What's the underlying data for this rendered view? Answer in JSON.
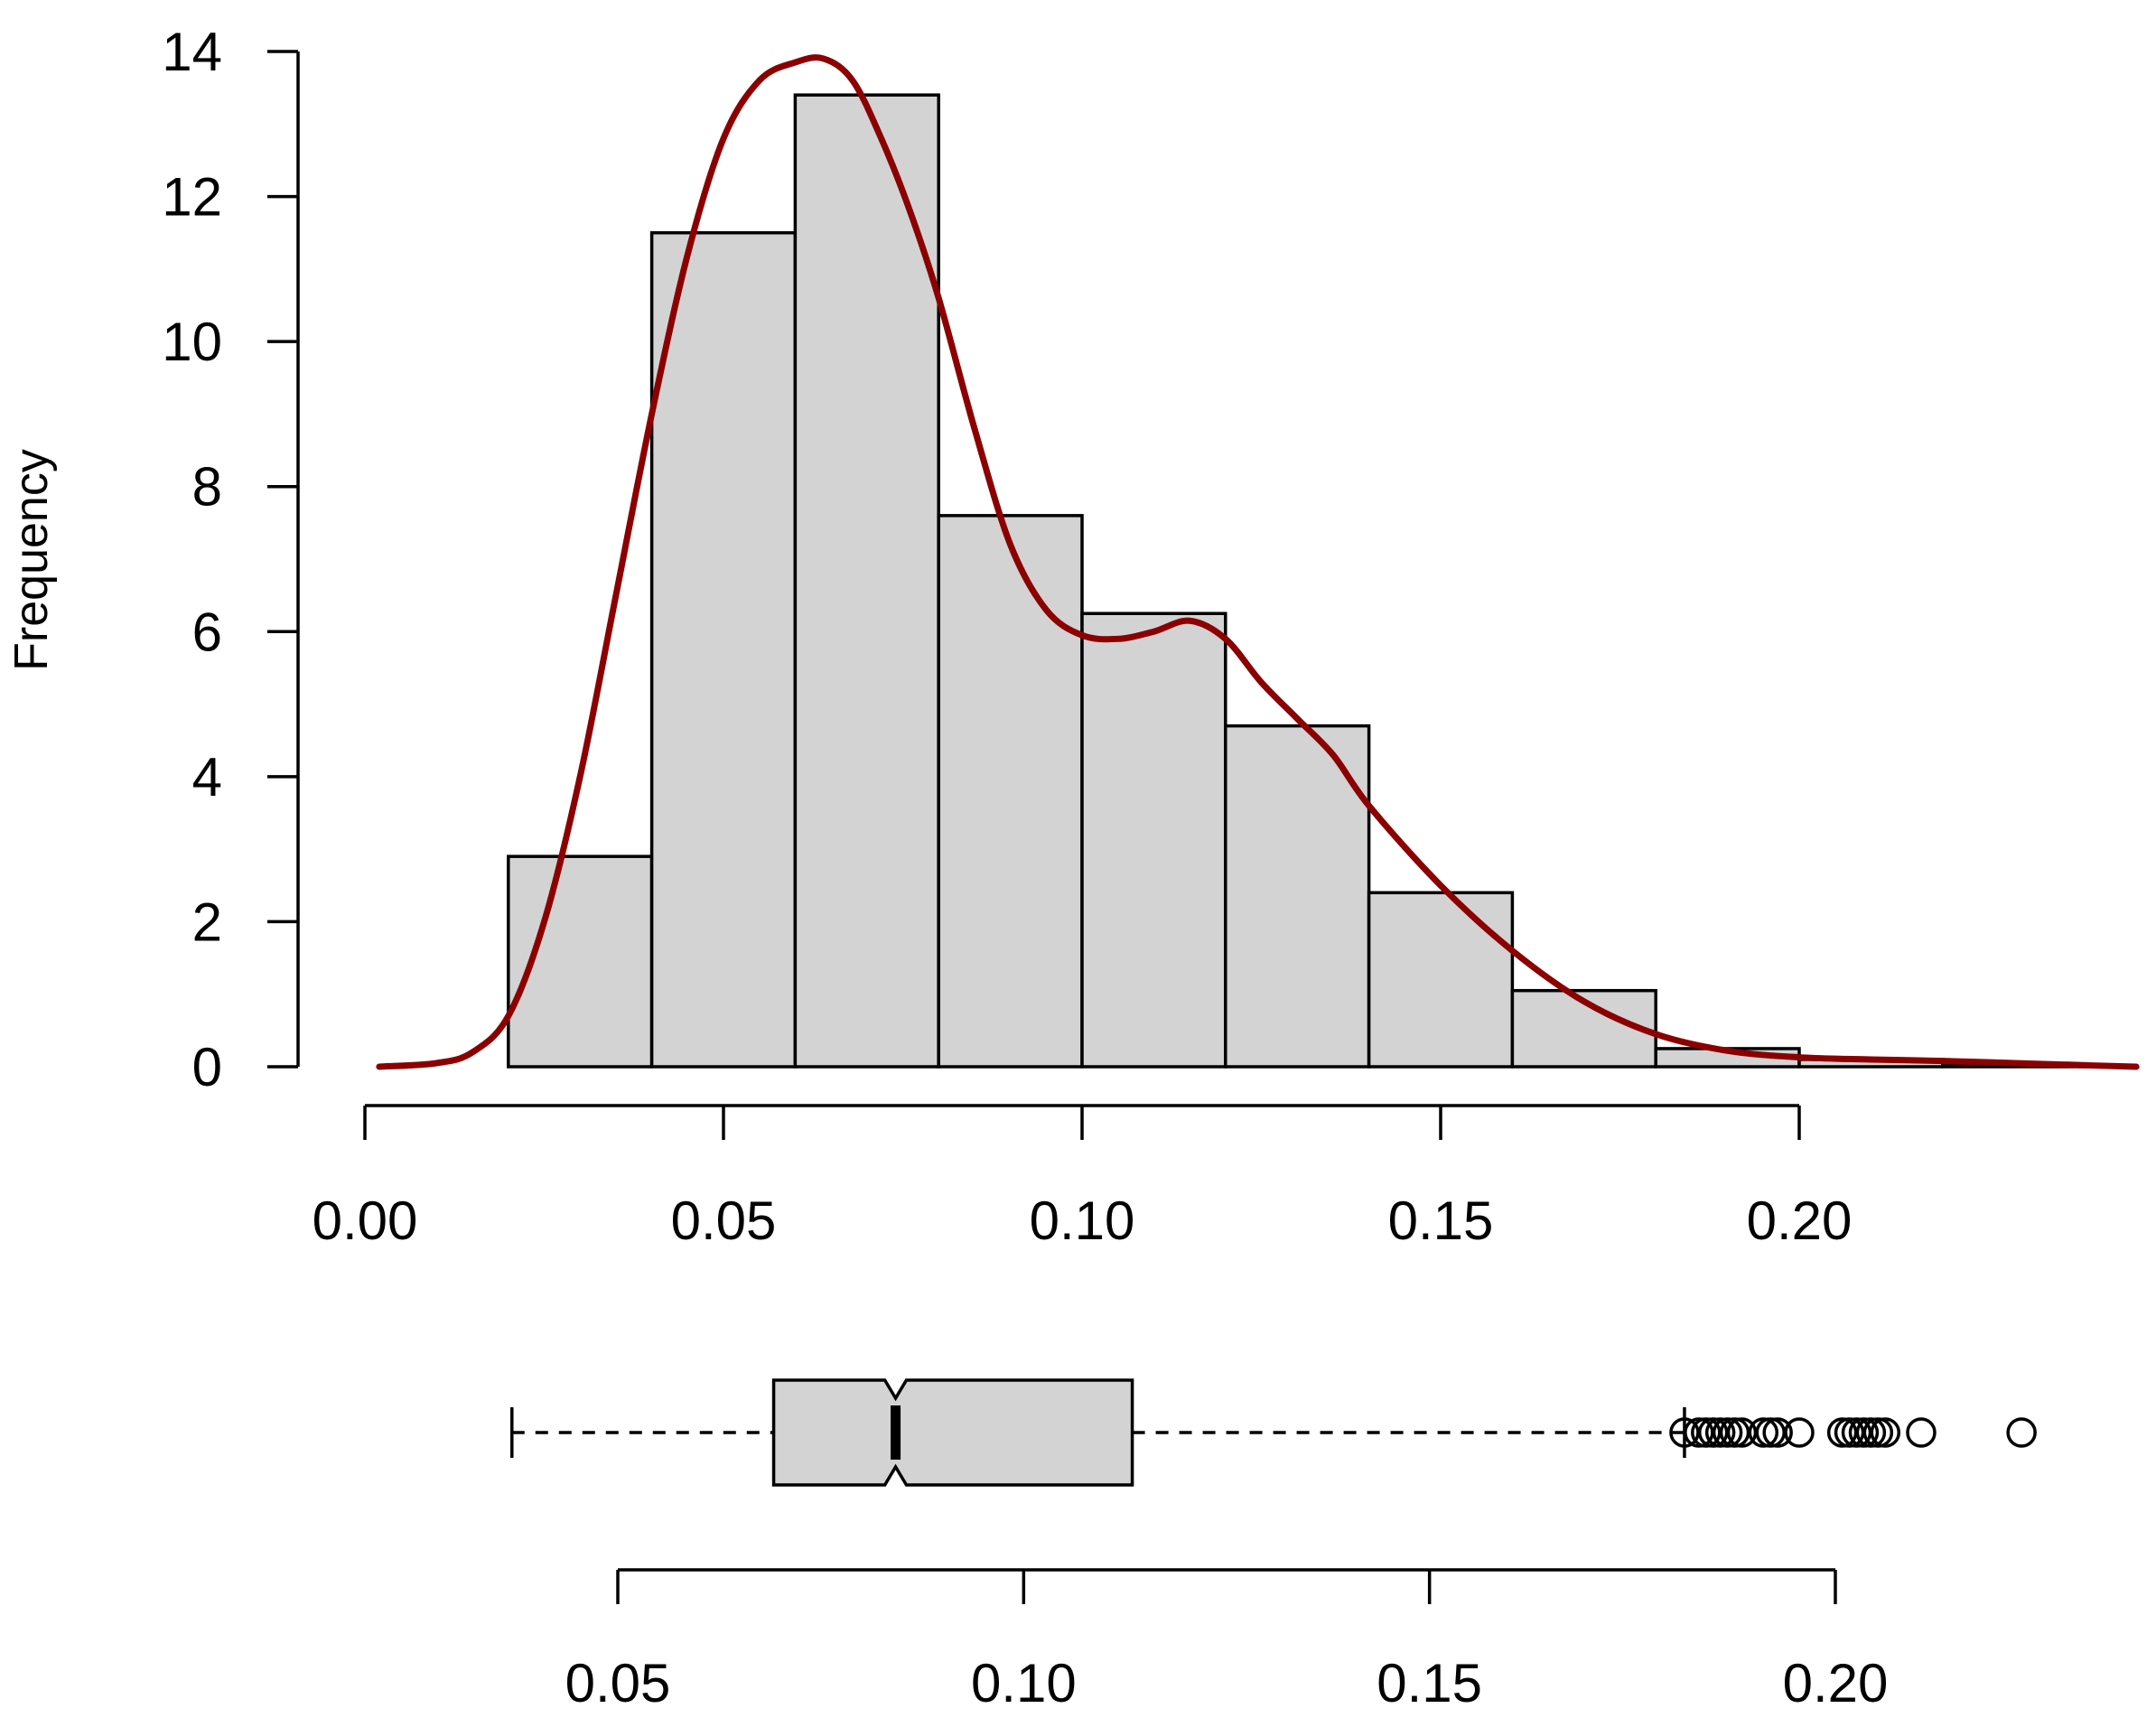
{
  "chart_data": [
    {
      "type": "histogram",
      "ylabel": "Frequency",
      "xlim": [
        0,
        0.25
      ],
      "ylim": [
        0,
        14
      ],
      "y_ticks": [
        "0",
        "2",
        "4",
        "6",
        "8",
        "10",
        "12",
        "14"
      ],
      "x_ticks": [
        "0.00",
        "0.05",
        "0.10",
        "0.15",
        "0.20"
      ],
      "bins": [
        {
          "from": 0.0,
          "to": 0.02,
          "value": 0.0
        },
        {
          "from": 0.02,
          "to": 0.04,
          "value": 2.9
        },
        {
          "from": 0.04,
          "to": 0.06,
          "value": 11.5
        },
        {
          "from": 0.06,
          "to": 0.08,
          "value": 13.4
        },
        {
          "from": 0.08,
          "to": 0.1,
          "value": 7.6
        },
        {
          "from": 0.1,
          "to": 0.12,
          "value": 6.25
        },
        {
          "from": 0.12,
          "to": 0.14,
          "value": 4.7
        },
        {
          "from": 0.14,
          "to": 0.16,
          "value": 2.4
        },
        {
          "from": 0.16,
          "to": 0.18,
          "value": 1.05
        },
        {
          "from": 0.18,
          "to": 0.2,
          "value": 0.25
        },
        {
          "from": 0.2,
          "to": 0.22,
          "value": 0.1
        },
        {
          "from": 0.22,
          "to": 0.24,
          "value": 0.02
        }
      ],
      "density_color": "#8b0000",
      "density_curve": {
        "x": [
          0.002,
          0.01,
          0.015,
          0.02,
          0.025,
          0.03,
          0.035,
          0.04,
          0.045,
          0.05,
          0.055,
          0.06,
          0.064,
          0.068,
          0.072,
          0.076,
          0.08,
          0.085,
          0.09,
          0.095,
          0.1,
          0.105,
          0.11,
          0.115,
          0.12,
          0.125,
          0.13,
          0.135,
          0.14,
          0.15,
          0.16,
          0.17,
          0.18,
          0.19,
          0.2,
          0.21,
          0.22,
          0.23,
          0.24,
          0.247
        ],
        "y": [
          0.0,
          0.05,
          0.2,
          0.7,
          2.0,
          4.0,
          6.5,
          9.0,
          11.2,
          12.8,
          13.6,
          13.85,
          13.9,
          13.6,
          12.8,
          11.8,
          10.6,
          8.8,
          7.2,
          6.3,
          5.95,
          5.9,
          6.0,
          6.15,
          5.9,
          5.3,
          4.8,
          4.3,
          3.6,
          2.5,
          1.6,
          0.9,
          0.45,
          0.22,
          0.13,
          0.1,
          0.08,
          0.05,
          0.02,
          0.0
        ]
      }
    },
    {
      "type": "boxplot",
      "notch": true,
      "xlim": [
        0.02,
        0.23
      ],
      "x_ticks": [
        "0.05",
        "0.10",
        "0.15",
        "0.20"
      ],
      "whisker_low": 0.0205,
      "q1": 0.057,
      "median": 0.074,
      "q3": 0.107,
      "notch_low": 0.0725,
      "notch_high": 0.0755,
      "whisker_high": 0.184,
      "outliers": [
        0.184,
        0.186,
        0.187,
        0.188,
        0.189,
        0.19,
        0.191,
        0.192,
        0.195,
        0.196,
        0.197,
        0.2,
        0.206,
        0.207,
        0.208,
        0.209,
        0.21,
        0.211,
        0.212,
        0.217,
        0.231
      ]
    }
  ]
}
